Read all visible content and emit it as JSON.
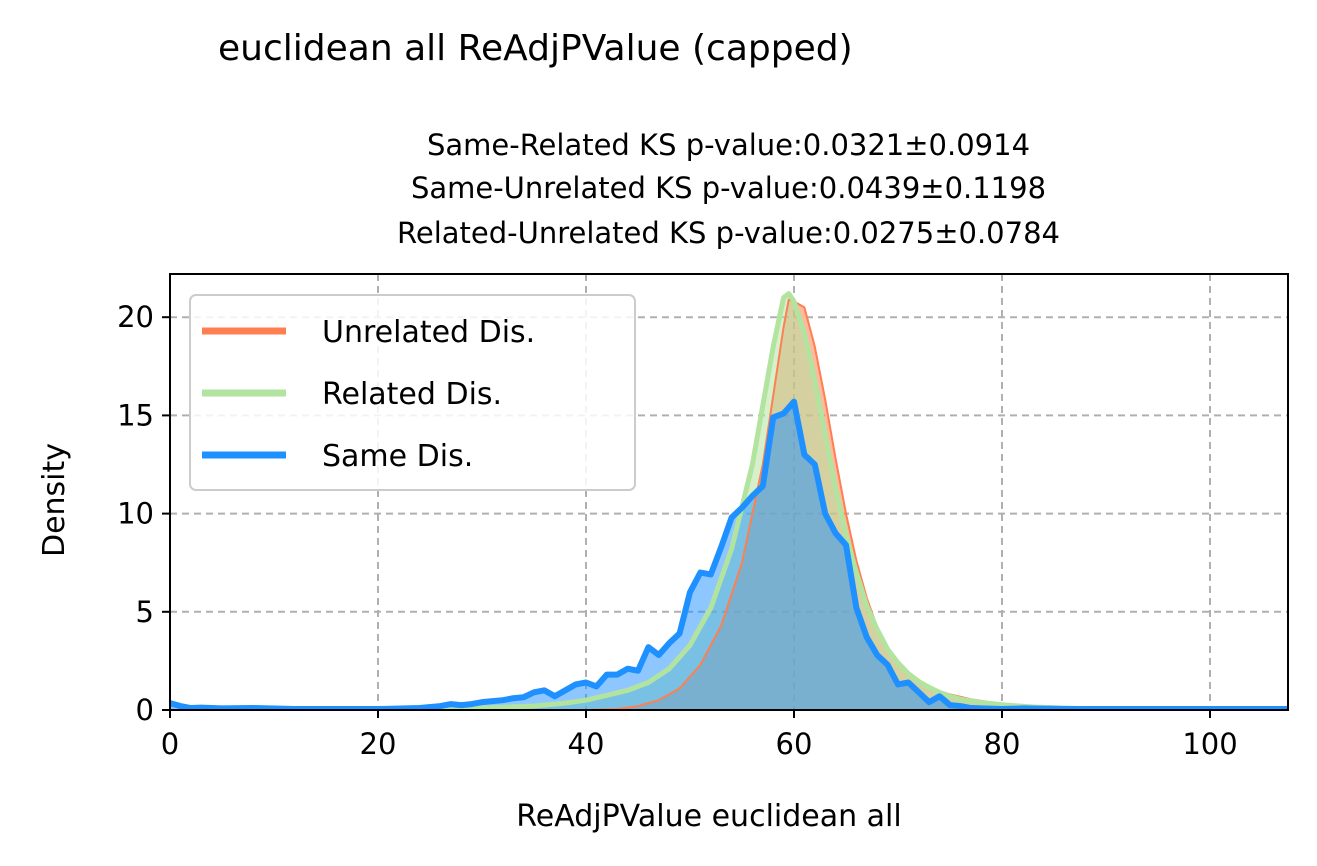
{
  "chart_data": {
    "type": "area",
    "suptitle": "euclidean all ReAdjPValue (capped)",
    "title_lines": [
      "Same-Related KS p-value:0.0321±0.0914",
      "Same-Unrelated KS p-value:0.0439±0.1198",
      "Related-Unrelated KS p-value:0.0275±0.0784"
    ],
    "xlabel": "ReAdjPValue euclidean all",
    "ylabel": "Density",
    "xlim": [
      0,
      107.5
    ],
    "ylim": [
      0,
      22.2
    ],
    "xticks": [
      0,
      20,
      40,
      60,
      80,
      100
    ],
    "yticks": [
      0,
      5,
      10,
      15,
      20
    ],
    "grid": true,
    "legend_position": "upper-left",
    "series": [
      {
        "name": "Unrelated Dis.",
        "color": "#ff7f50",
        "fill": "#d4a978",
        "x": [
          40,
          43,
          45,
          47,
          49,
          51,
          53,
          55,
          57,
          58,
          59,
          59.5,
          60,
          61,
          62,
          63,
          64,
          65,
          66,
          67,
          68,
          69,
          70,
          71,
          72,
          73,
          74,
          75,
          77,
          79,
          81,
          84,
          88,
          95,
          107.5
        ],
        "y": [
          0,
          0.05,
          0.2,
          0.5,
          1.1,
          2.3,
          4.3,
          7.5,
          12.5,
          16.0,
          19.5,
          20.9,
          20.8,
          20.5,
          18.5,
          15.8,
          12.8,
          10.0,
          7.6,
          5.7,
          4.2,
          3.1,
          2.3,
          1.8,
          1.45,
          1.15,
          0.95,
          0.8,
          0.55,
          0.38,
          0.25,
          0.15,
          0.08,
          0.03,
          0.0
        ]
      },
      {
        "name": "Related Dis.",
        "color": "#b2e4a0",
        "fill": "#c4e8b0",
        "x": [
          25,
          30,
          35,
          38,
          40,
          42,
          44,
          46,
          48,
          50,
          52,
          54,
          56,
          57,
          58,
          59,
          59.5,
          60,
          61,
          62,
          63,
          64,
          65,
          66,
          67,
          68,
          69,
          70,
          71,
          72,
          73,
          74,
          75,
          76,
          78,
          80,
          83,
          87,
          95,
          107.5
        ],
        "y": [
          0,
          0.1,
          0.2,
          0.35,
          0.5,
          0.75,
          1.0,
          1.4,
          2.1,
          3.3,
          5.2,
          8.2,
          12.5,
          15.5,
          18.5,
          21.0,
          21.2,
          20.8,
          19.2,
          16.8,
          14.0,
          11.3,
          8.9,
          7.0,
          5.3,
          4.1,
          3.1,
          2.4,
          1.85,
          1.45,
          1.15,
          0.9,
          0.7,
          0.55,
          0.38,
          0.27,
          0.15,
          0.08,
          0.03,
          0.0
        ]
      },
      {
        "name": "Same Dis.",
        "color": "#1e90ff",
        "fill": "#7fb8ee",
        "x": [
          0,
          1,
          2,
          3,
          5,
          8,
          12,
          16,
          20,
          24,
          26,
          27,
          28,
          29,
          30,
          31,
          32,
          33,
          34,
          35,
          36,
          37,
          38,
          39,
          40,
          41,
          42,
          43,
          44,
          45,
          46,
          47,
          48,
          49,
          50,
          51,
          52,
          53,
          54,
          55,
          56,
          57,
          58,
          59,
          60,
          61,
          62,
          63,
          64,
          65,
          66,
          67,
          68,
          69,
          70,
          71,
          72,
          73,
          74,
          75,
          76,
          77,
          78,
          80,
          82,
          86,
          90,
          95,
          100,
          107.5
        ],
        "y": [
          0.35,
          0.2,
          0.1,
          0.12,
          0.08,
          0.1,
          0.05,
          0.05,
          0.05,
          0.1,
          0.2,
          0.3,
          0.25,
          0.3,
          0.4,
          0.45,
          0.5,
          0.6,
          0.65,
          0.9,
          1.0,
          0.7,
          1.0,
          1.3,
          1.4,
          1.2,
          1.8,
          1.8,
          2.1,
          2.0,
          3.2,
          2.8,
          3.4,
          3.9,
          6.0,
          7.0,
          6.9,
          8.3,
          9.8,
          10.3,
          10.9,
          11.4,
          14.9,
          15.1,
          15.7,
          13.0,
          12.5,
          10.0,
          9.0,
          8.4,
          5.2,
          3.7,
          2.8,
          2.3,
          1.3,
          1.4,
          0.9,
          0.4,
          0.7,
          0.25,
          0.2,
          0.1,
          0.08,
          0.05,
          0.08,
          0.05,
          0.05,
          0.05,
          0.05,
          0.05
        ]
      }
    ]
  }
}
